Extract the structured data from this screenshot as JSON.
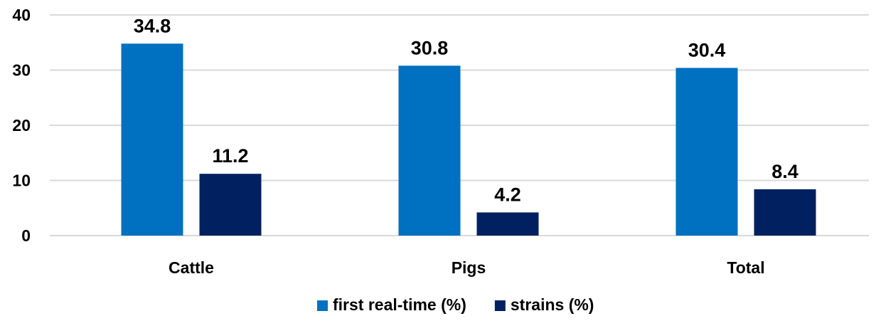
{
  "chart_data": {
    "type": "bar",
    "categories": [
      "Cattle",
      "Pigs",
      "Total"
    ],
    "series": [
      {
        "name": "first real-time (%)",
        "values": [
          34.8,
          30.8,
          30.4
        ],
        "color": "#0070c0",
        "labels": [
          "34.8",
          "30.8",
          "30.4"
        ]
      },
      {
        "name": "strains (%)",
        "values": [
          11.2,
          4.2,
          8.4
        ],
        "color": "#002060",
        "labels": [
          "11.2",
          "4.2",
          "8.4"
        ]
      }
    ],
    "yticks": [
      "0",
      "10",
      "20",
      "30",
      "40"
    ],
    "ylim": [
      0,
      40
    ],
    "grid": true,
    "legend": "bottom-center",
    "title": "",
    "xlabel": "",
    "ylabel": ""
  }
}
